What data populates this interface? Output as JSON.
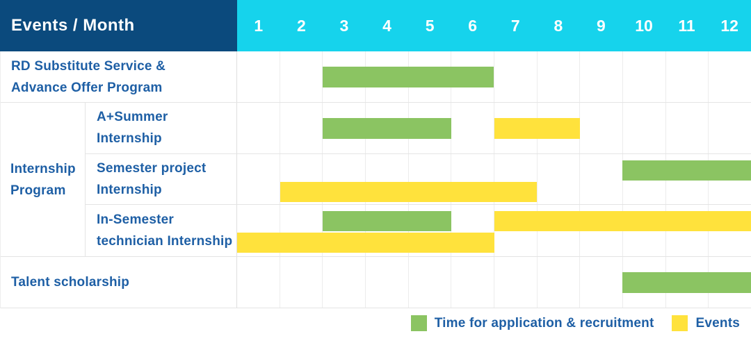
{
  "colors": {
    "header_navy": "#0b4a7d",
    "header_cyan": "#16d3ec",
    "label_blue": "#1e5fa5",
    "bar_green": "#8bc462",
    "bar_yellow": "#ffe23c"
  },
  "header": {
    "corner_label": "Events / Month",
    "months": [
      "1",
      "2",
      "3",
      "4",
      "5",
      "6",
      "7",
      "8",
      "9",
      "10",
      "11",
      "12"
    ]
  },
  "chart_data": {
    "type": "gantt",
    "x_unit": "month",
    "x_range": [
      1,
      12
    ],
    "grid": true,
    "legend_position": "bottom-right",
    "series_keys": [
      {
        "key": "recruitment",
        "color_key": "bar_green",
        "meaning": "Time for application & recruitment"
      },
      {
        "key": "event",
        "color_key": "bar_yellow",
        "meaning": "Events"
      }
    ],
    "rows": [
      {
        "kind": "simple",
        "label_lines": [
          "RD Substitute Service &",
          "Advance Offer Program"
        ],
        "bands": [
          [
            {
              "type": "recruitment",
              "start_month": 3,
              "end_month": 6
            }
          ]
        ]
      },
      {
        "kind": "group",
        "group_label_lines": [
          "Internship",
          "Program"
        ],
        "subrows": [
          {
            "label_lines": [
              "A+Summer",
              "Internship"
            ],
            "bands": [
              [
                {
                  "type": "recruitment",
                  "start_month": 3,
                  "end_month": 5
                },
                {
                  "type": "event",
                  "start_month": 7,
                  "end_month": 8
                }
              ]
            ]
          },
          {
            "label_lines": [
              "Semester project",
              "Internship"
            ],
            "bands": [
              [
                {
                  "type": "recruitment",
                  "start_month": 10,
                  "end_month": 12
                }
              ],
              [
                {
                  "type": "event",
                  "start_month": 2,
                  "end_month": 7
                }
              ]
            ]
          },
          {
            "label_lines": [
              "In-Semester",
              "technician Internship"
            ],
            "bands": [
              [
                {
                  "type": "recruitment",
                  "start_month": 3,
                  "end_month": 5
                },
                {
                  "type": "event",
                  "start_month": 7,
                  "end_month": 12
                }
              ],
              [
                {
                  "type": "event",
                  "start_month": 1,
                  "end_month": 6
                }
              ]
            ]
          }
        ]
      },
      {
        "kind": "simple",
        "label_lines": [
          "Talent scholarship"
        ],
        "bands": [
          [
            {
              "type": "recruitment",
              "start_month": 10,
              "end_month": 12
            }
          ]
        ]
      }
    ]
  },
  "legend": {
    "items": [
      {
        "type": "recruitment",
        "label": "Time for application & recruitment"
      },
      {
        "type": "event",
        "label": "Events"
      }
    ]
  }
}
